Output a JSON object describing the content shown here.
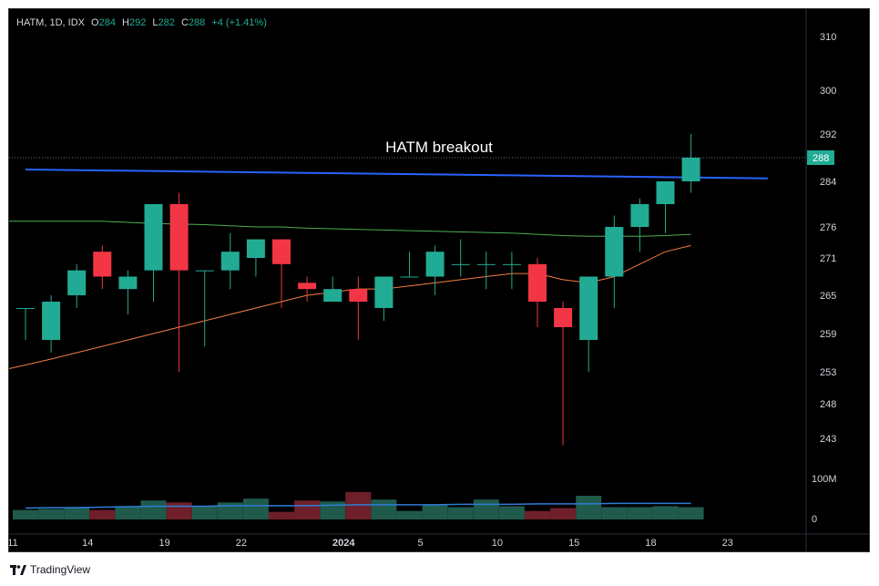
{
  "header": {
    "symbol": "HATM, 1D, IDX",
    "open_label": "O",
    "open": "284",
    "high_label": "H",
    "high": "292",
    "low_label": "L",
    "low": "282",
    "close_label": "C",
    "close": "288",
    "change": "+4 (+1.41%)"
  },
  "footer": {
    "brand": "TradingView"
  },
  "colors": {
    "up": "#22ab94",
    "down": "#f23645",
    "trendline": "#2962ff",
    "ma_short": "#f57c42",
    "ma_long": "#4caf50",
    "volume_ma": "#2f7dd6"
  },
  "chart_data": {
    "type": "candlestick",
    "annotation": "HATM breakout",
    "last_price_label": "288",
    "price_axis_ticks": [
      "310",
      "300",
      "292",
      "284",
      "276",
      "271",
      "265",
      "259",
      "253",
      "248",
      "243"
    ],
    "volume_axis_ticks": [
      "100M",
      "0"
    ],
    "x_tick_labels": [
      {
        "i": 0,
        "label": "11"
      },
      {
        "i": 3,
        "label": "14"
      },
      {
        "i": 6,
        "label": "19"
      },
      {
        "i": 9,
        "label": "22"
      },
      {
        "i": 13,
        "label": "2024"
      },
      {
        "i": 16,
        "label": "5"
      },
      {
        "i": 19,
        "label": "10"
      },
      {
        "i": 22,
        "label": "15"
      },
      {
        "i": 25,
        "label": "18"
      },
      {
        "i": 28,
        "label": "23"
      }
    ],
    "candles": [
      {
        "o": 263,
        "h": 263,
        "l": 258,
        "c": 263
      },
      {
        "o": 258,
        "h": 265,
        "l": 256,
        "c": 264
      },
      {
        "o": 265,
        "h": 270,
        "l": 263,
        "c": 269
      },
      {
        "o": 272,
        "h": 273,
        "l": 266,
        "c": 268
      },
      {
        "o": 266,
        "h": 269,
        "l": 262,
        "c": 268
      },
      {
        "o": 269,
        "h": 280,
        "l": 264,
        "c": 280
      },
      {
        "o": 280,
        "h": 282,
        "l": 253,
        "c": 269
      },
      {
        "o": 269,
        "h": 269,
        "l": 257,
        "c": 269
      },
      {
        "o": 269,
        "h": 275,
        "l": 266,
        "c": 272
      },
      {
        "o": 271,
        "h": 274,
        "l": 268,
        "c": 274
      },
      {
        "o": 274,
        "h": 274,
        "l": 263,
        "c": 270
      },
      {
        "o": 267,
        "h": 268,
        "l": 264,
        "c": 266
      },
      {
        "o": 264,
        "h": 268,
        "l": 264,
        "c": 266
      },
      {
        "o": 266,
        "h": 268,
        "l": 258,
        "c": 264
      },
      {
        "o": 263,
        "h": 268,
        "l": 261,
        "c": 268
      },
      {
        "o": 268,
        "h": 272,
        "l": 268,
        "c": 268
      },
      {
        "o": 268,
        "h": 273,
        "l": 265,
        "c": 272
      },
      {
        "o": 270,
        "h": 274,
        "l": 268,
        "c": 270
      },
      {
        "o": 270,
        "h": 272,
        "l": 266,
        "c": 270
      },
      {
        "o": 270,
        "h": 272,
        "l": 266,
        "c": 270
      },
      {
        "o": 270,
        "h": 271,
        "l": 260,
        "c": 264
      },
      {
        "o": 263,
        "h": 264,
        "l": 242,
        "c": 260
      },
      {
        "o": 258,
        "h": 268,
        "l": 253,
        "c": 268
      },
      {
        "o": 268,
        "h": 278,
        "l": 263,
        "c": 276
      },
      {
        "o": 276,
        "h": 281,
        "l": 272,
        "c": 280
      },
      {
        "o": 280,
        "h": 284,
        "l": 275,
        "c": 284
      },
      {
        "o": 284,
        "h": 292,
        "l": 282,
        "c": 288
      }
    ],
    "volume": [
      20,
      22,
      26,
      20,
      28,
      40,
      36,
      28,
      36,
      44,
      16,
      40,
      38,
      58,
      42,
      18,
      30,
      26,
      42,
      28,
      18,
      24,
      50,
      26,
      26,
      28,
      26
    ],
    "ma_short": [
      253.5,
      255,
      256,
      257,
      258,
      259,
      260,
      261,
      262,
      263,
      264,
      265,
      265.5,
      266,
      266,
      266.5,
      267,
      267.5,
      268,
      268.5,
      268.5,
      267.5,
      267,
      268,
      270,
      272,
      273
    ],
    "ma_long": [
      277,
      277,
      277,
      277,
      276.8,
      276.6,
      276.5,
      276.4,
      276.2,
      276,
      276,
      275.8,
      275.7,
      275.6,
      275.5,
      275.4,
      275.3,
      275.2,
      275.1,
      275,
      274.8,
      274.6,
      274.5,
      274.5,
      274.5,
      274.6,
      274.8
    ],
    "volume_ma": [
      24,
      25,
      25,
      26,
      27,
      28,
      28,
      28,
      29,
      29,
      29,
      29,
      30,
      31,
      31,
      31,
      31,
      32,
      32,
      32,
      33,
      33,
      33,
      34,
      34,
      34,
      34
    ],
    "trendline": {
      "x0": 0,
      "y0": 286.0,
      "x1": 29,
      "y1": 284.5
    },
    "y_range": [
      242,
      313
    ],
    "volume_range": [
      0,
      100
    ]
  }
}
